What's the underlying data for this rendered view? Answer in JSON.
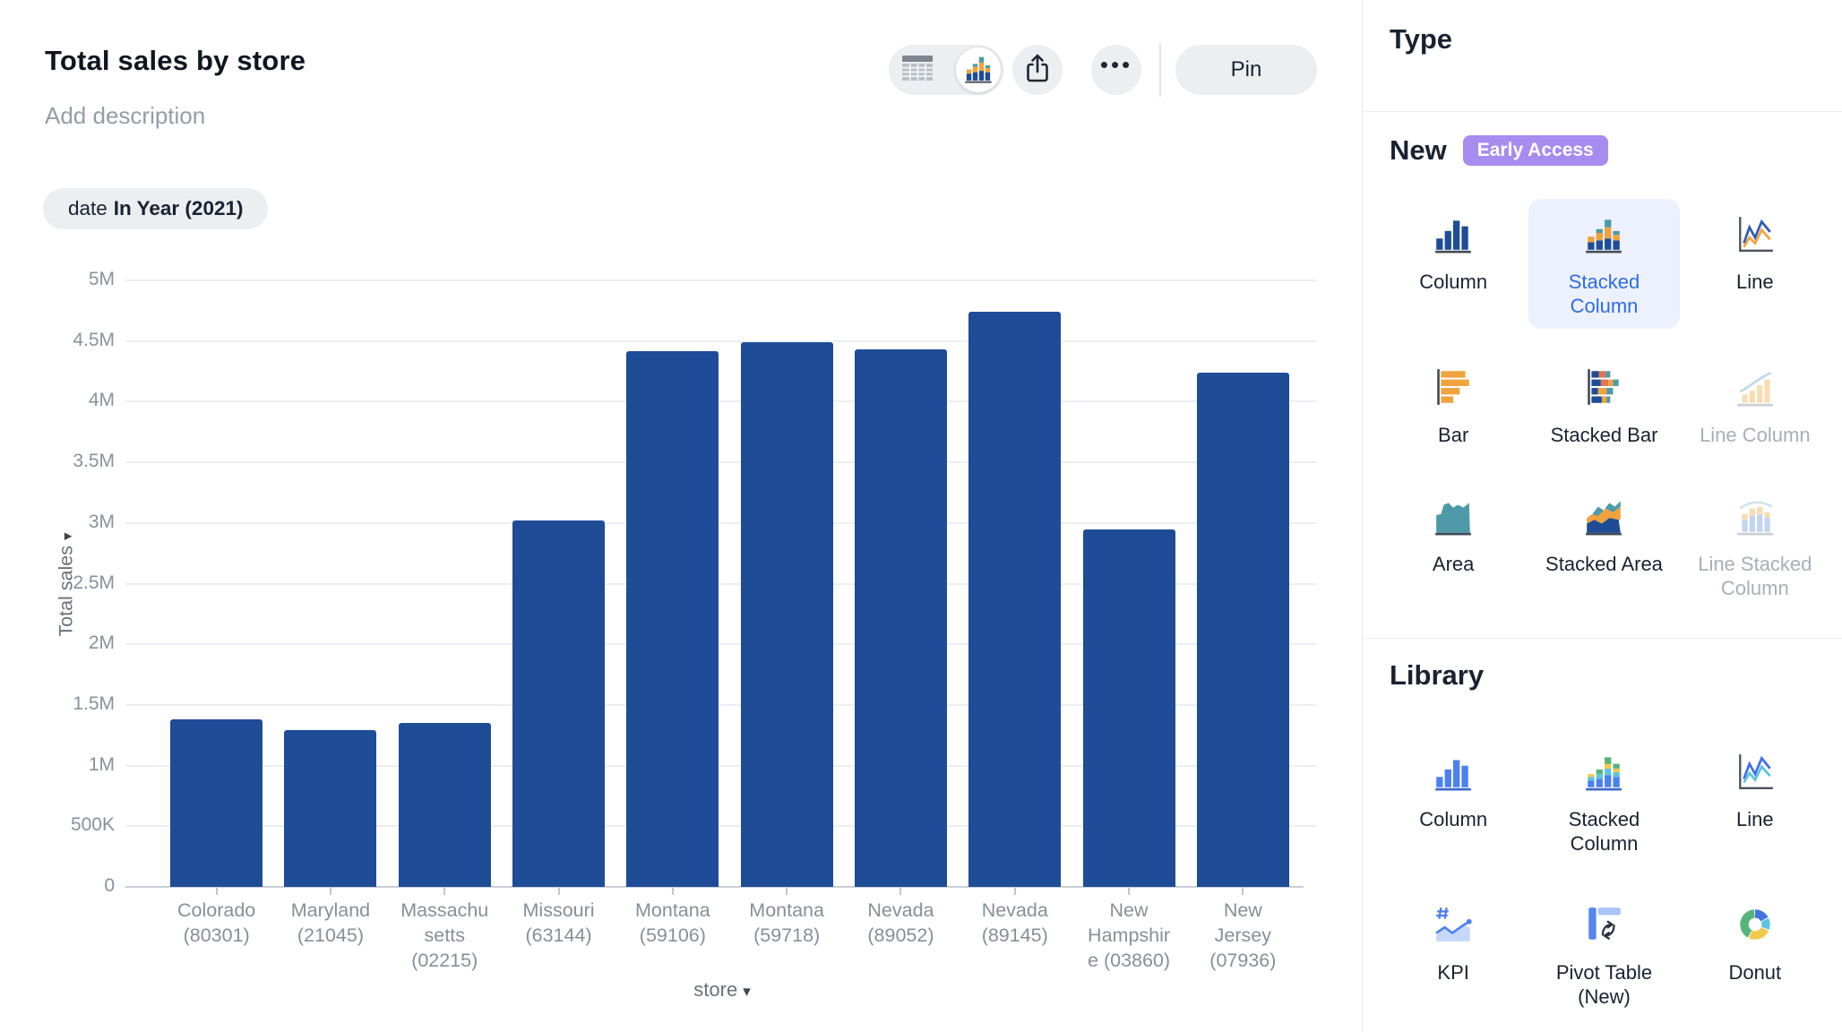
{
  "header": {
    "title": "Total sales by store",
    "description_placeholder": "Add description",
    "toolbar": {
      "table_view_icon": "table-icon",
      "chart_view_icon": "stacked-chart-icon",
      "share_icon": "share-icon",
      "more_icon": "ellipsis-icon",
      "pin_label": "Pin"
    }
  },
  "filter_chip": {
    "field": "date",
    "condition": "In Year (2021)"
  },
  "chart_data": {
    "type": "bar",
    "title": "Total sales by store",
    "xlabel": "store",
    "ylabel": "Total sales",
    "grid": true,
    "legend": "none",
    "bar_color": "#1e4c96",
    "ylim": [
      0,
      5000000
    ],
    "y_ticks": [
      "5M",
      "4.5M",
      "4M",
      "3.5M",
      "3M",
      "2.5M",
      "2M",
      "1.5M",
      "1M",
      "500K",
      "0"
    ],
    "y_tick_values": [
      5000000,
      4500000,
      4000000,
      3500000,
      3000000,
      2500000,
      2000000,
      1500000,
      1000000,
      500000,
      0
    ],
    "categories": [
      "Colorado (80301)",
      "Maryland (21045)",
      "Massachusetts (02215)",
      "Missouri (63144)",
      "Montana (59106)",
      "Montana (59718)",
      "Nevada (89052)",
      "Nevada (89145)",
      "New Hampshire (03860)",
      "New Jersey (07936)"
    ],
    "category_lines": [
      [
        "Colorado",
        "(80301)"
      ],
      [
        "Maryland",
        "(21045)"
      ],
      [
        "Massachu",
        "setts",
        "(02215)"
      ],
      [
        "Missouri",
        "(63144)"
      ],
      [
        "Montana",
        "(59106)"
      ],
      [
        "Montana",
        "(59718)"
      ],
      [
        "Nevada",
        "(89052)"
      ],
      [
        "Nevada",
        "(89145)"
      ],
      [
        "New",
        "Hampshir",
        "e (03860)"
      ],
      [
        "New",
        "Jersey",
        "(07936)"
      ]
    ],
    "values": [
      1380000,
      1290000,
      1350000,
      3020000,
      4420000,
      4490000,
      4430000,
      4740000,
      2950000,
      4240000
    ]
  },
  "sidebar": {
    "title": "Type",
    "sections": [
      {
        "label": "New",
        "badge": "Early Access",
        "options": [
          {
            "label": "Column",
            "icon": "column-icon",
            "state": "normal"
          },
          {
            "label": "Stacked Column",
            "icon": "stacked-column-icon",
            "state": "selected"
          },
          {
            "label": "Line",
            "icon": "line-icon",
            "state": "normal"
          },
          {
            "label": "Bar",
            "icon": "bar-icon",
            "state": "normal"
          },
          {
            "label": "Stacked Bar",
            "icon": "stacked-bar-icon",
            "state": "normal"
          },
          {
            "label": "Line Column",
            "icon": "line-column-icon",
            "state": "disabled"
          },
          {
            "label": "Area",
            "icon": "area-icon",
            "state": "normal"
          },
          {
            "label": "Stacked Area",
            "icon": "stacked-area-icon",
            "state": "normal"
          },
          {
            "label": "Line Stacked Column",
            "icon": "line-stacked-column-icon",
            "state": "disabled"
          }
        ]
      },
      {
        "label": "Library",
        "badge": "",
        "options": [
          {
            "label": "Column",
            "icon": "column-lib-icon",
            "state": "normal"
          },
          {
            "label": "Stacked Column",
            "icon": "stacked-column-lib-icon",
            "state": "normal"
          },
          {
            "label": "Line",
            "icon": "line-lib-icon",
            "state": "normal"
          },
          {
            "label": "KPI",
            "icon": "kpi-icon",
            "state": "normal"
          },
          {
            "label": "Pivot Table (New)",
            "icon": "pivot-table-icon",
            "state": "normal"
          },
          {
            "label": "Donut",
            "icon": "donut-icon",
            "state": "normal"
          }
        ]
      }
    ]
  },
  "colors": {
    "bar": "#1e4c96",
    "accent_blue": "#2e6ce8",
    "selected_card_bg": "#edf1fd",
    "badge_purple": "#a78bef",
    "control_bg": "#eceef2",
    "gridline": "#edeef4",
    "text_dark": "#1a2130",
    "text_gray": "#8a909b",
    "disabled_text": "#a8aeb9"
  }
}
